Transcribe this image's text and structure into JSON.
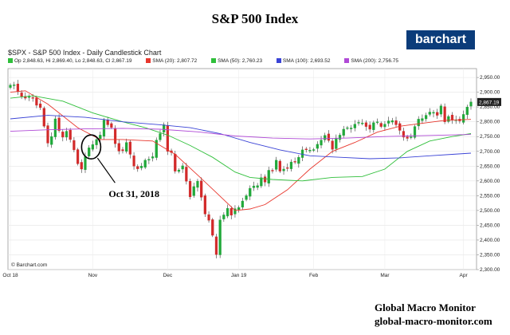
{
  "page": {
    "title": "S&P 500 Index",
    "brand": "barchart",
    "footer_line1": "Global Macro Monitor",
    "footer_line2": "global-macro-monitor.com"
  },
  "chart_data": {
    "type": "candlestick",
    "title": "$SPX - S&P 500 Index - Daily Candlestick Chart",
    "ohlc_label": "Op 2,848.63, Hi 2,869.40, Lo 2,848.63, Cl 2,867.19",
    "source_label": "© Barchart.com",
    "price_tag": "2,867.19",
    "ylim": [
      2300,
      2980
    ],
    "y_ticks": [
      2300,
      2350,
      2400,
      2450,
      2500,
      2550,
      2600,
      2650,
      2700,
      2750,
      2800,
      2850,
      2900,
      2950
    ],
    "y_tick_labels": [
      "2,300.00",
      "2,350.00",
      "2,400.00",
      "2,450.00",
      "2,500.00",
      "2,550.00",
      "2,600.00",
      "2,650.00",
      "2,700.00",
      "2,750.00",
      "2,800.00",
      "2,850.00",
      "2,900.00",
      "2,950.00"
    ],
    "x_ticks": [
      {
        "label": "Oct 18",
        "index": 0
      },
      {
        "label": "Nov",
        "index": 22
      },
      {
        "label": "Dec",
        "index": 42
      },
      {
        "label": "Jan 19",
        "index": 61
      },
      {
        "label": "Feb",
        "index": 81
      },
      {
        "label": "Mar",
        "index": 100
      },
      {
        "label": "Apr",
        "index": 121
      }
    ],
    "legend": [
      {
        "label": "SMA (20): 2,807.72",
        "color": "#e8372d"
      },
      {
        "label": "SMA (50): 2,760.23",
        "color": "#2fbf3a"
      },
      {
        "label": "SMA (100): 2,693.52",
        "color": "#3a43d6"
      },
      {
        "label": "SMA (200): 2,756.75",
        "color": "#b04ad6"
      }
    ],
    "closes": [
      2924,
      2925,
      2902,
      2886,
      2880,
      2885,
      2880,
      2856,
      2848,
      2785,
      2728,
      2750,
      2810,
      2770,
      2748,
      2768,
      2740,
      2705,
      2658,
      2640,
      2682,
      2712,
      2723,
      2740,
      2755,
      2806,
      2790,
      2781,
      2726,
      2701,
      2702,
      2730,
      2690,
      2650,
      2641,
      2650,
      2670,
      2673,
      2682,
      2738,
      2760,
      2790,
      2700,
      2696,
      2633,
      2637,
      2651,
      2599,
      2546,
      2581,
      2599,
      2545,
      2488,
      2467,
      2416,
      2351,
      2468,
      2485,
      2507,
      2484,
      2506,
      2510,
      2532,
      2550,
      2575,
      2583,
      2584,
      2611,
      2596,
      2636,
      2635,
      2670,
      2633,
      2640,
      2643,
      2664,
      2664,
      2680,
      2705,
      2706,
      2704,
      2706,
      2724,
      2738,
      2754,
      2737,
      2707,
      2745,
      2755,
      2775,
      2780,
      2779,
      2792,
      2798,
      2796,
      2784,
      2775,
      2797,
      2800,
      2784,
      2792,
      2803,
      2804,
      2790,
      2771,
      2748,
      2744,
      2749,
      2784,
      2809,
      2811,
      2822,
      2833,
      2832,
      2822,
      2854,
      2800,
      2818,
      2806,
      2807,
      2803,
      2825,
      2850,
      2867
    ],
    "series": [
      {
        "name": "SMA (20)",
        "color": "#e8372d",
        "values": [
          [
            0,
            2900
          ],
          [
            4,
            2905
          ],
          [
            10,
            2860
          ],
          [
            18,
            2780
          ],
          [
            24,
            2740
          ],
          [
            30,
            2740
          ],
          [
            38,
            2735
          ],
          [
            44,
            2690
          ],
          [
            50,
            2620
          ],
          [
            55,
            2560
          ],
          [
            60,
            2500
          ],
          [
            64,
            2505
          ],
          [
            68,
            2520
          ],
          [
            74,
            2570
          ],
          [
            80,
            2640
          ],
          [
            86,
            2700
          ],
          [
            92,
            2730
          ],
          [
            98,
            2765
          ],
          [
            104,
            2785
          ],
          [
            110,
            2795
          ],
          [
            116,
            2805
          ],
          [
            123,
            2808
          ]
        ]
      },
      {
        "name": "SMA (50)",
        "color": "#2fbf3a",
        "values": [
          [
            0,
            2880
          ],
          [
            6,
            2888
          ],
          [
            14,
            2870
          ],
          [
            22,
            2830
          ],
          [
            30,
            2800
          ],
          [
            36,
            2780
          ],
          [
            42,
            2755
          ],
          [
            48,
            2720
          ],
          [
            54,
            2680
          ],
          [
            60,
            2630
          ],
          [
            64,
            2612
          ],
          [
            70,
            2605
          ],
          [
            78,
            2600
          ],
          [
            86,
            2612
          ],
          [
            94,
            2615
          ],
          [
            100,
            2640
          ],
          [
            106,
            2700
          ],
          [
            112,
            2735
          ],
          [
            118,
            2750
          ],
          [
            123,
            2760
          ]
        ]
      },
      {
        "name": "SMA (100)",
        "color": "#3a43d6",
        "values": [
          [
            0,
            2810
          ],
          [
            10,
            2822
          ],
          [
            20,
            2815
          ],
          [
            30,
            2800
          ],
          [
            40,
            2790
          ],
          [
            48,
            2780
          ],
          [
            56,
            2760
          ],
          [
            64,
            2730
          ],
          [
            72,
            2705
          ],
          [
            80,
            2685
          ],
          [
            88,
            2680
          ],
          [
            96,
            2675
          ],
          [
            104,
            2678
          ],
          [
            112,
            2685
          ],
          [
            118,
            2690
          ],
          [
            123,
            2694
          ]
        ]
      },
      {
        "name": "SMA (200)",
        "color": "#b04ad6",
        "values": [
          [
            0,
            2768
          ],
          [
            10,
            2773
          ],
          [
            20,
            2776
          ],
          [
            30,
            2778
          ],
          [
            40,
            2775
          ],
          [
            50,
            2766
          ],
          [
            60,
            2752
          ],
          [
            70,
            2745
          ],
          [
            80,
            2742
          ],
          [
            90,
            2745
          ],
          [
            100,
            2750
          ],
          [
            110,
            2753
          ],
          [
            123,
            2757
          ]
        ]
      }
    ],
    "annotation": {
      "label": "Oct 31, 2018",
      "index": 22,
      "value": 2715
    }
  }
}
